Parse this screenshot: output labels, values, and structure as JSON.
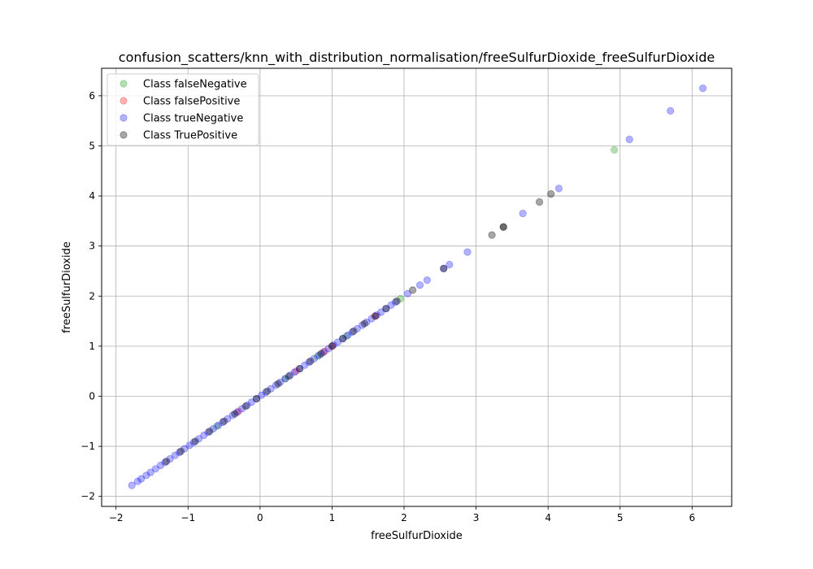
{
  "chart_data": {
    "type": "scatter",
    "title": "confusion_scatters/knn_with_distribution_normalisation/freeSulfurDioxide_freeSulfurDioxide",
    "xlabel": "freeSulfurDioxide",
    "ylabel": "freeSulfurDioxide",
    "xlim": [
      -2.2,
      6.55
    ],
    "ylim": [
      -2.2,
      6.55
    ],
    "xticks": [
      -2,
      -1,
      0,
      1,
      2,
      3,
      4,
      5,
      6
    ],
    "yticks": [
      -2,
      -1,
      0,
      1,
      2,
      3,
      4,
      5,
      6
    ],
    "x_tick_labels": [
      "−2",
      "−1",
      "0",
      "1",
      "2",
      "3",
      "4",
      "5",
      "6"
    ],
    "y_tick_labels": [
      "−2",
      "−1",
      "0",
      "1",
      "2",
      "3",
      "4",
      "5",
      "6"
    ],
    "grid": true,
    "legend_position": "top-left",
    "series": [
      {
        "name": "Class falseNegative",
        "color": "#2ca02c",
        "alpha": 0.35,
        "x": [
          4.92,
          1.95,
          0.35,
          -0.6,
          1.2,
          0.8
        ],
        "y": [
          4.92,
          1.95,
          0.35,
          -0.6,
          1.2,
          0.8
        ]
      },
      {
        "name": "Class falsePositive",
        "color": "#ff0000",
        "alpha": 0.3,
        "x": [
          0.5,
          1.0,
          -0.3,
          0.9,
          1.6
        ],
        "y": [
          0.5,
          1.0,
          -0.3,
          0.9,
          1.6
        ]
      },
      {
        "name": "Class trueNegative",
        "color": "#0000ff",
        "alpha": 0.3,
        "x": [
          -1.78,
          -1.7,
          -1.65,
          -1.58,
          -1.52,
          -1.45,
          -1.38,
          -1.32,
          -1.25,
          -1.18,
          -1.12,
          -1.05,
          -0.98,
          -0.92,
          -0.85,
          -0.78,
          -0.72,
          -0.65,
          -0.58,
          -0.52,
          -0.45,
          -0.38,
          -0.32,
          -0.25,
          -0.18,
          -0.12,
          -0.05,
          0.02,
          0.08,
          0.15,
          0.22,
          0.28,
          0.35,
          0.42,
          0.48,
          0.55,
          0.62,
          0.68,
          0.75,
          0.82,
          0.88,
          0.95,
          1.02,
          1.08,
          1.15,
          1.22,
          1.28,
          1.35,
          1.42,
          1.48,
          1.55,
          1.62,
          1.68,
          1.75,
          1.82,
          1.88,
          2.05,
          2.22,
          2.32,
          2.55,
          2.63,
          2.88,
          3.65,
          4.15,
          5.13,
          5.7,
          6.15
        ],
        "y": [
          -1.78,
          -1.7,
          -1.65,
          -1.58,
          -1.52,
          -1.45,
          -1.38,
          -1.32,
          -1.25,
          -1.18,
          -1.12,
          -1.05,
          -0.98,
          -0.92,
          -0.85,
          -0.78,
          -0.72,
          -0.65,
          -0.58,
          -0.52,
          -0.45,
          -0.38,
          -0.32,
          -0.25,
          -0.18,
          -0.12,
          -0.05,
          0.02,
          0.08,
          0.15,
          0.22,
          0.28,
          0.35,
          0.42,
          0.48,
          0.55,
          0.62,
          0.68,
          0.75,
          0.82,
          0.88,
          0.95,
          1.02,
          1.08,
          1.15,
          1.22,
          1.28,
          1.35,
          1.42,
          1.48,
          1.55,
          1.62,
          1.68,
          1.75,
          1.82,
          1.88,
          2.05,
          2.22,
          2.32,
          2.55,
          2.63,
          2.88,
          3.65,
          4.15,
          5.13,
          5.7,
          6.15
        ]
      },
      {
        "name": "Class TruePositive",
        "color": "#000000",
        "alpha": 0.35,
        "x": [
          -1.3,
          -1.1,
          -0.9,
          -0.7,
          -0.5,
          -0.35,
          -0.2,
          -0.05,
          0.1,
          0.25,
          0.4,
          0.55,
          0.7,
          0.85,
          1.0,
          1.15,
          1.3,
          1.45,
          1.6,
          1.75,
          1.9,
          2.12,
          2.55,
          3.22,
          3.38,
          3.38,
          3.88,
          4.04
        ],
        "y": [
          -1.3,
          -1.1,
          -0.9,
          -0.7,
          -0.5,
          -0.35,
          -0.2,
          -0.05,
          0.1,
          0.25,
          0.4,
          0.55,
          0.7,
          0.85,
          1.0,
          1.15,
          1.3,
          1.45,
          1.6,
          1.75,
          1.9,
          2.12,
          2.55,
          3.22,
          3.38,
          3.38,
          3.88,
          4.04
        ]
      }
    ]
  }
}
